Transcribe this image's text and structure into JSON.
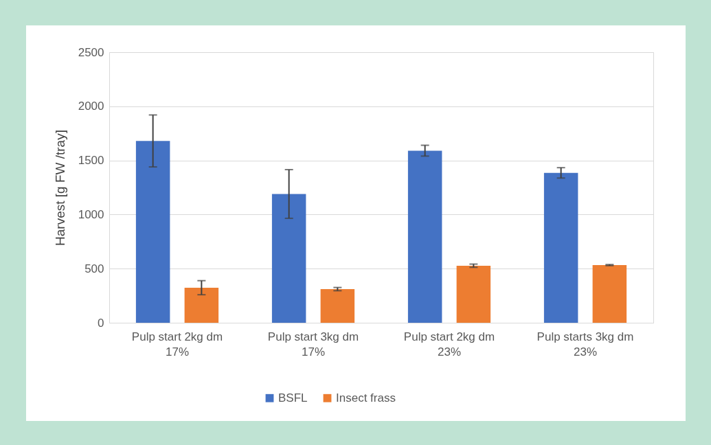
{
  "chart_data": {
    "type": "bar",
    "ylabel": "Harvest [g FW /tray]",
    "categories": [
      "Pulp start 2kg dm 17%",
      "Pulp start 3kg dm 17%",
      "Pulp start 2kg dm 23%",
      "Pulp starts 3kg dm 23%"
    ],
    "series": [
      {
        "name": "BSFL",
        "color": "#4472c4",
        "values": [
          1680,
          1190,
          1590,
          1385
        ],
        "errors": [
          240,
          225,
          50,
          48
        ]
      },
      {
        "name": "Insect frass",
        "color": "#ed7d31",
        "values": [
          324,
          311,
          527,
          533
        ],
        "errors": [
          65,
          15,
          15,
          5
        ]
      }
    ],
    "ylim": [
      0,
      2500
    ],
    "yticks": [
      0,
      500,
      1000,
      1500,
      2000,
      2500
    ],
    "grid": "y",
    "legend": "bottom"
  }
}
